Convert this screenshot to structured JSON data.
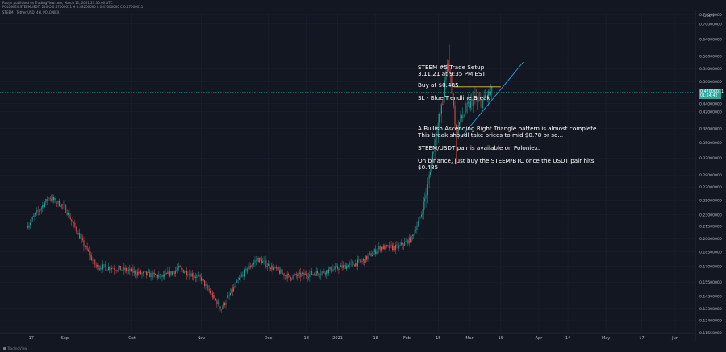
{
  "header": {
    "line1": "Roojin published on TradingView.com, March 11, 2021 21:35:00 UTC",
    "line2": "POLONIEX:STEEMUSDT, 240  O 0.47000011  H 0.48200000  L 0.47000000  C 0.47000011",
    "line3": "STEEM / Tether USD, 4H, POLONIEX"
  },
  "footer": {
    "brand": "TradingView"
  },
  "price_tag": {
    "price": "0.47000011",
    "countdown": "01:24:42"
  },
  "colors": {
    "up": "#26a69a",
    "down": "#ef5350",
    "background": "#131722",
    "grid": "#1f2330",
    "yellow_line": "#e8c640",
    "blue_line": "#2f9fdc"
  },
  "annotations": {
    "setup": "STEEM #5 Trade Setup\n3.11.21 at 9:35 PM EST",
    "buy": "Buy at $0.485",
    "sl": "SL - Blue Trendline Break",
    "note": "A Bullish Ascending Right Triangle pattern is almost complete.\nThis break shoudl take prices to mid $0.78 or so...",
    "pair": "STEEM/USDT pair is available on Poloniex.",
    "binance": "On binance, just buy the STEEM/BTC once the USDT pair hits\n$0.485"
  },
  "chart_data": {
    "type": "candlestick",
    "scale": "log",
    "y_axis_unit": "USDT",
    "y_ticks": [
      0.74,
      0.7,
      0.64,
      0.58,
      0.54,
      0.5,
      0.44,
      0.42,
      0.38,
      0.35,
      0.32,
      0.29,
      0.27,
      0.25,
      0.23,
      0.215,
      0.2,
      0.185,
      0.17,
      0.155,
      0.143,
      0.133,
      0.124,
      0.1155
    ],
    "y_tick_labels": [
      "0.74000000",
      "0.70000000",
      "0.64000000",
      "0.58000000",
      "0.54000000",
      "0.50000000",
      "0.44000000",
      "0.42000000",
      "0.38000000",
      "0.35000000",
      "0.32000000",
      "0.29000000",
      "0.27000000",
      "0.25000000",
      "0.23000000",
      "0.21500000",
      "0.20000000",
      "0.18500000",
      "0.17000000",
      "0.15500000",
      "0.14300000",
      "0.13300000",
      "0.12400000",
      "0.11550000"
    ],
    "x_ticks": [
      "17",
      "Sep",
      "Oct",
      "Nov",
      "Dec",
      "18",
      "2021",
      "18",
      "Feb",
      "15",
      "Mar",
      "15",
      "Apr",
      "14",
      "May",
      "17",
      "Jun"
    ],
    "x_tick_dates": [
      "2020-08-17",
      "2020-09-01",
      "2020-10-01",
      "2020-11-01",
      "2020-12-01",
      "2020-12-18",
      "2021-01-01",
      "2021-01-18",
      "2021-02-01",
      "2021-02-15",
      "2021-03-01",
      "2021-03-15",
      "2021-04-01",
      "2021-04-14",
      "2021-05-01",
      "2021-05-17",
      "2021-06-01"
    ],
    "price_path": [
      [
        "2020-08-15",
        0.215
      ],
      [
        "2020-08-25",
        0.255
      ],
      [
        "2020-09-01",
        0.24
      ],
      [
        "2020-09-08",
        0.2
      ],
      [
        "2020-09-15",
        0.17
      ],
      [
        "2020-09-25",
        0.168
      ],
      [
        "2020-10-05",
        0.163
      ],
      [
        "2020-10-15",
        0.16
      ],
      [
        "2020-10-22",
        0.168
      ],
      [
        "2020-11-01",
        0.158
      ],
      [
        "2020-11-06",
        0.143
      ],
      [
        "2020-11-10",
        0.133
      ],
      [
        "2020-11-18",
        0.158
      ],
      [
        "2020-11-26",
        0.178
      ],
      [
        "2020-12-02",
        0.17
      ],
      [
        "2020-12-10",
        0.16
      ],
      [
        "2020-12-18",
        0.162
      ],
      [
        "2020-12-26",
        0.165
      ],
      [
        "2021-01-04",
        0.17
      ],
      [
        "2021-01-12",
        0.175
      ],
      [
        "2021-01-20",
        0.19
      ],
      [
        "2021-01-28",
        0.19
      ],
      [
        "2021-02-03",
        0.2
      ],
      [
        "2021-02-08",
        0.235
      ],
      [
        "2021-02-11",
        0.29
      ],
      [
        "2021-02-14",
        0.37
      ],
      [
        "2021-02-17",
        0.44
      ],
      [
        "2021-02-19",
        0.55
      ],
      [
        "2021-02-21",
        0.5
      ],
      [
        "2021-02-23",
        0.37
      ],
      [
        "2021-02-25",
        0.4
      ],
      [
        "2021-02-28",
        0.43
      ],
      [
        "2021-03-03",
        0.45
      ],
      [
        "2021-03-06",
        0.44
      ],
      [
        "2021-03-09",
        0.46
      ],
      [
        "2021-03-11",
        0.47
      ]
    ],
    "extremes": {
      "high": [
        "2021-02-20",
        0.62
      ],
      "low_after_peak": [
        "2021-02-23",
        0.31
      ]
    },
    "drawings": {
      "resistance_line": {
        "color": "yellow",
        "from": [
          "2021-02-22",
          0.485
        ],
        "to": [
          "2021-03-15",
          0.485
        ]
      },
      "ascending_trendline": {
        "color": "blue",
        "from": [
          "2021-02-25",
          0.36
        ],
        "to": [
          "2021-03-25",
          0.56
        ]
      }
    },
    "last_price": 0.47000011
  }
}
